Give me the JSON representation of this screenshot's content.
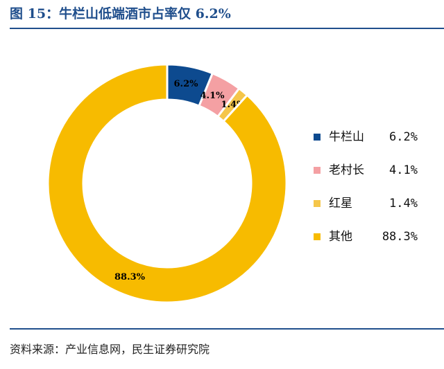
{
  "title": "图 15：牛栏山低端酒市占率仅 6.2%",
  "source": "资料来源：产业信息网，民生证券研究院",
  "chart_data": {
    "type": "pie",
    "variant": "donut",
    "title": "图 15：牛栏山低端酒市占率仅 6.2%",
    "legend_position": "right",
    "categories": [
      "牛栏山",
      "老村长",
      "红星",
      "其他"
    ],
    "values": [
      6.2,
      4.1,
      1.4,
      88.3
    ],
    "unit": "%",
    "data_labels": [
      "6.2%",
      "4.1%",
      "1.4%",
      "88.3%"
    ],
    "colors": [
      "#0d4a8f",
      "#f4a0a3",
      "#f5c64a",
      "#f7bb00"
    ]
  },
  "legend": [
    {
      "name": "牛栏山",
      "pct": "6.2%"
    },
    {
      "name": "老村长",
      "pct": "4.1%"
    },
    {
      "name": "红星",
      "pct": "1.4%"
    },
    {
      "name": "其他",
      "pct": "88.3%"
    }
  ]
}
